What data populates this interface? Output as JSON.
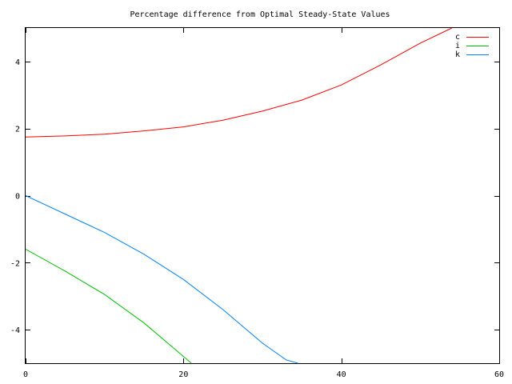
{
  "chart_data": {
    "type": "line",
    "title": "Percentage difference from Optimal Steady-State Values",
    "xlabel": "",
    "ylabel": "",
    "xlim": [
      0,
      60
    ],
    "ylim": [
      -5,
      5
    ],
    "xticks": [
      0,
      20,
      40,
      60
    ],
    "yticks": [
      -4,
      -2,
      0,
      2,
      4
    ],
    "grid": false,
    "legend": "top-right",
    "series": [
      {
        "name": "c",
        "color": "#ff0000",
        "x": [
          0,
          5,
          10,
          15,
          20,
          25,
          30,
          35,
          40,
          45,
          50,
          54
        ],
        "y": [
          1.75,
          1.78,
          1.83,
          1.93,
          2.05,
          2.25,
          2.52,
          2.85,
          3.3,
          3.9,
          4.55,
          5.0
        ]
      },
      {
        "name": "i",
        "color": "#00c000",
        "x": [
          0,
          5,
          10,
          15,
          19,
          21
        ],
        "y": [
          -1.6,
          -2.25,
          -2.95,
          -3.8,
          -4.6,
          -5.0
        ]
      },
      {
        "name": "k",
        "color": "#0080ff",
        "x": [
          0,
          5,
          10,
          15,
          20,
          25,
          30,
          33,
          34.5
        ],
        "y": [
          0.0,
          -0.55,
          -1.1,
          -1.75,
          -2.5,
          -3.4,
          -4.4,
          -4.9,
          -5.0
        ]
      }
    ]
  }
}
